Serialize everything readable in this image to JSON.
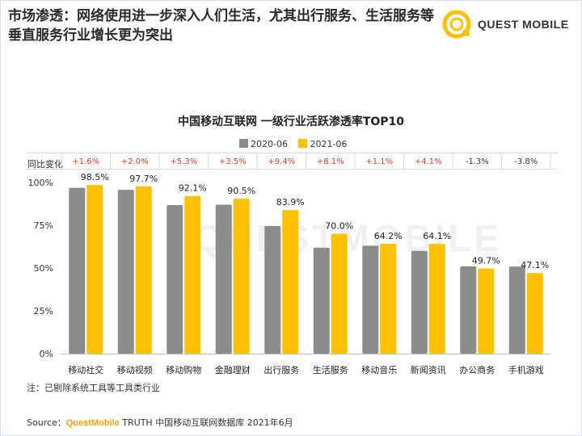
{
  "slide": {
    "title": "市场渗透：网络使用进一步深入人们生活，尤其出行服务、生活服务等垂直服务行业增长更为突出"
  },
  "logo": {
    "text": "QUEST MOBILE"
  },
  "watermark": "QUESTMOBILE",
  "chart_data": {
    "type": "bar",
    "title": "中国移动互联网 一级行业活跃渗透率TOP10",
    "categories": [
      "移动社交",
      "移动视频",
      "移动购物",
      "金融理财",
      "出行服务",
      "生活服务",
      "移动音乐",
      "新闻资讯",
      "办公商务",
      "手机游戏"
    ],
    "series": [
      {
        "name": "2020-06",
        "color": "#8c8c8c",
        "values": [
          96.9,
          95.7,
          86.8,
          87.0,
          74.5,
          61.9,
          63.1,
          60.0,
          51.0,
          50.9
        ]
      },
      {
        "name": "2021-06",
        "color": "#ffc000",
        "values": [
          98.5,
          97.7,
          92.1,
          90.5,
          83.9,
          70.0,
          64.2,
          64.1,
          49.7,
          47.1
        ],
        "labels": [
          "98.5%",
          "97.7%",
          "92.1%",
          "90.5%",
          "83.9%",
          "70.0%",
          "64.2%",
          "64.1%",
          "49.7%",
          "47.1%"
        ]
      }
    ],
    "change_label": "同比变化",
    "changes": [
      "+1.6%",
      "+2.0%",
      "+5.3%",
      "+3.5%",
      "+9.4%",
      "+8.1%",
      "+1.1%",
      "+4.1%",
      "-1.3%",
      "-3.8%"
    ],
    "positive_color": "#e0392b",
    "negative_color": "#333333",
    "ylim": [
      0,
      100
    ],
    "yticks": [
      "0%",
      "25%",
      "50%",
      "75%",
      "100%"
    ],
    "grid": false,
    "legend": "top-center"
  },
  "note": "注：已剔除系统工具等工具类行业",
  "source": {
    "prefix": "Source：",
    "brand": "QuestMobile",
    "text": " TRUTH 中国移动互联网数据库 2021年6月"
  }
}
